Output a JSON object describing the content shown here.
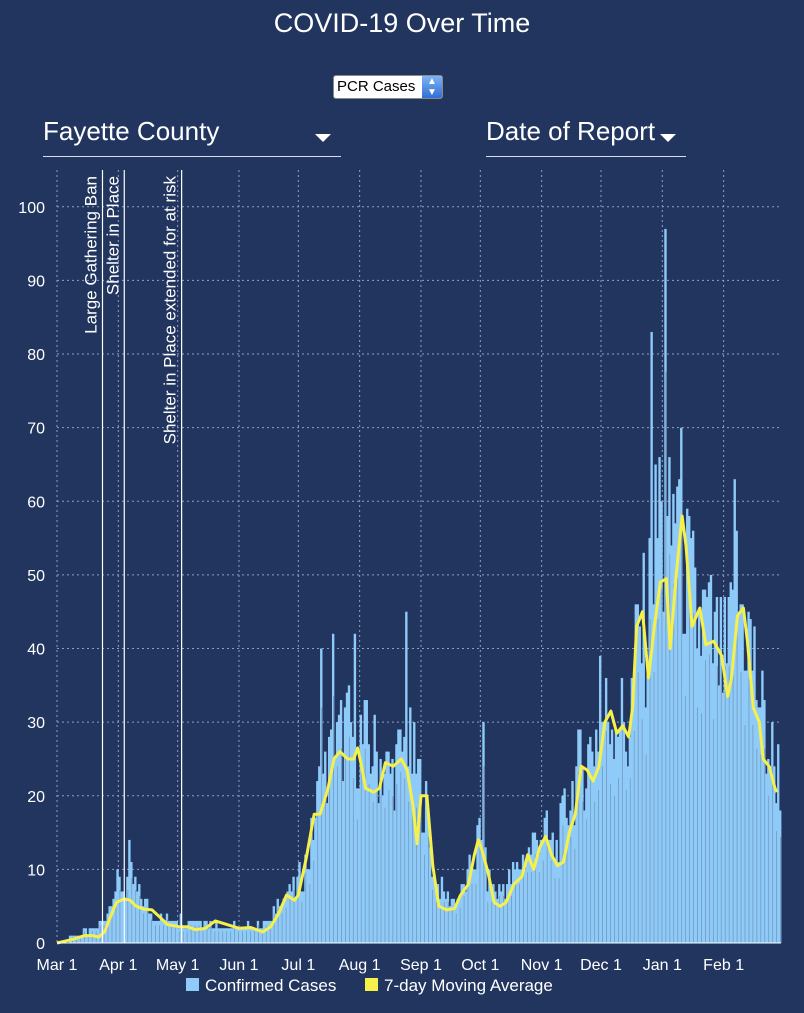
{
  "title": "COVID-19 Over Time",
  "metric_select": {
    "value": "PCR Cases"
  },
  "county_select": {
    "value": "Fayette County"
  },
  "date_select": {
    "value": "Date of Report"
  },
  "colors": {
    "background": "#21355f",
    "bars": "#8fcbf9",
    "avg_line": "#f6f04b",
    "grid": "#8da0c4"
  },
  "chart_data": {
    "type": "bar",
    "overlay": "line",
    "x_start": "Mar 1",
    "x_range_days": [
      0,
      366
    ],
    "ylim": [
      0,
      105
    ],
    "yticks": [
      0,
      10,
      20,
      30,
      40,
      50,
      60,
      70,
      80,
      90,
      100
    ],
    "x_tick_labels": [
      {
        "day": 0,
        "label": "Mar 1"
      },
      {
        "day": 31,
        "label": "Apr 1"
      },
      {
        "day": 61,
        "label": "May 1"
      },
      {
        "day": 92,
        "label": "Jun 1"
      },
      {
        "day": 122,
        "label": "Jul 1"
      },
      {
        "day": 153,
        "label": "Aug 1"
      },
      {
        "day": 184,
        "label": "Sep 1"
      },
      {
        "day": 214,
        "label": "Oct 1"
      },
      {
        "day": 245,
        "label": "Nov 1"
      },
      {
        "day": 275,
        "label": "Dec 1"
      },
      {
        "day": 306,
        "label": "Jan 1"
      },
      {
        "day": 337,
        "label": "Feb 1"
      }
    ],
    "annotations": [
      {
        "day": 23,
        "label": "Large Gathering Ban"
      },
      {
        "day": 34,
        "label": "Shelter in Place"
      },
      {
        "day": 63,
        "label": "Shelter in Place extended for at risk"
      }
    ],
    "legend": [
      "Confirmed Cases",
      "7-day Moving Average"
    ],
    "series": [
      {
        "name": "Confirmed Cases",
        "type": "bar",
        "anchors": [
          [
            0,
            0
          ],
          [
            10,
            1
          ],
          [
            20,
            2
          ],
          [
            24,
            4
          ],
          [
            27,
            6
          ],
          [
            30,
            8
          ],
          [
            33,
            7
          ],
          [
            37,
            9
          ],
          [
            41,
            6
          ],
          [
            48,
            4
          ],
          [
            55,
            3
          ],
          [
            65,
            3
          ],
          [
            75,
            3
          ],
          [
            85,
            2
          ],
          [
            95,
            2
          ],
          [
            108,
            3
          ],
          [
            112,
            6
          ],
          [
            120,
            7
          ],
          [
            127,
            12
          ],
          [
            132,
            20
          ],
          [
            138,
            24
          ],
          [
            145,
            28
          ],
          [
            152,
            27
          ],
          [
            160,
            25
          ],
          [
            168,
            22
          ],
          [
            176,
            26
          ],
          [
            182,
            22
          ],
          [
            186,
            18
          ],
          [
            190,
            8
          ],
          [
            196,
            6
          ],
          [
            203,
            6
          ],
          [
            208,
            9
          ],
          [
            213,
            14
          ],
          [
            218,
            8
          ],
          [
            222,
            7
          ],
          [
            228,
            8
          ],
          [
            235,
            11
          ],
          [
            240,
            13
          ],
          [
            245,
            15
          ],
          [
            251,
            12
          ],
          [
            257,
            18
          ],
          [
            262,
            22
          ],
          [
            267,
            24
          ],
          [
            272,
            28
          ],
          [
            278,
            30
          ],
          [
            283,
            31
          ],
          [
            288,
            27
          ],
          [
            293,
            40
          ],
          [
            298,
            42
          ],
          [
            303,
            55
          ],
          [
            308,
            50
          ],
          [
            313,
            60
          ],
          [
            318,
            48
          ],
          [
            323,
            42
          ],
          [
            328,
            42
          ],
          [
            333,
            38
          ],
          [
            338,
            36
          ],
          [
            343,
            46
          ],
          [
            348,
            42
          ],
          [
            353,
            35
          ],
          [
            358,
            27
          ],
          [
            363,
            23
          ],
          [
            366,
            21
          ]
        ],
        "peaks": [
          [
            36,
            14
          ],
          [
            133,
            40
          ],
          [
            139,
            42
          ],
          [
            150,
            42
          ],
          [
            176,
            45
          ],
          [
            215,
            30
          ],
          [
            274,
            39
          ],
          [
            300,
            83
          ],
          [
            304,
            66
          ],
          [
            307,
            97
          ],
          [
            313,
            62
          ],
          [
            319,
            58
          ],
          [
            342,
            63
          ]
        ]
      },
      {
        "name": "7-day Moving Average",
        "type": "line",
        "points": [
          [
            0,
            0
          ],
          [
            8,
            0.5
          ],
          [
            14,
            1
          ],
          [
            18,
            1
          ],
          [
            21,
            0.8
          ],
          [
            24,
            1.5
          ],
          [
            27,
            3.5
          ],
          [
            30,
            5.5
          ],
          [
            34,
            6
          ],
          [
            37,
            5.8
          ],
          [
            40,
            5
          ],
          [
            44,
            4.6
          ],
          [
            48,
            4.5
          ],
          [
            52,
            3.5
          ],
          [
            56,
            2.5
          ],
          [
            62,
            2.2
          ],
          [
            66,
            2.2
          ],
          [
            70,
            1.8
          ],
          [
            75,
            2
          ],
          [
            80,
            3
          ],
          [
            86,
            2.5
          ],
          [
            92,
            2
          ],
          [
            98,
            2.1
          ],
          [
            104,
            1.5
          ],
          [
            108,
            2.2
          ],
          [
            112,
            4
          ],
          [
            116,
            6.5
          ],
          [
            120,
            5.8
          ],
          [
            122,
            6.5
          ],
          [
            126,
            11.5
          ],
          [
            130,
            17.5
          ],
          [
            133,
            17.5
          ],
          [
            137,
            21
          ],
          [
            140,
            25
          ],
          [
            143,
            26
          ],
          [
            147,
            25
          ],
          [
            150,
            25
          ],
          [
            152,
            26.5
          ],
          [
            154,
            24
          ],
          [
            156,
            21
          ],
          [
            160,
            20.5
          ],
          [
            163,
            21
          ],
          [
            166,
            24.5
          ],
          [
            170,
            24
          ],
          [
            174,
            25
          ],
          [
            177,
            23.5
          ],
          [
            180,
            18.5
          ],
          [
            182,
            13.5
          ],
          [
            184,
            20
          ],
          [
            187,
            20
          ],
          [
            190,
            10.5
          ],
          [
            193,
            5
          ],
          [
            197,
            4.5
          ],
          [
            201,
            4.7
          ],
          [
            204,
            6.5
          ],
          [
            208,
            8
          ],
          [
            211,
            12
          ],
          [
            213,
            14
          ],
          [
            215,
            12.5
          ],
          [
            218,
            9.5
          ],
          [
            221,
            5.5
          ],
          [
            224,
            5
          ],
          [
            227,
            5.5
          ],
          [
            231,
            8
          ],
          [
            235,
            9
          ],
          [
            238,
            12
          ],
          [
            241,
            10
          ],
          [
            244,
            13
          ],
          [
            247,
            14.5
          ],
          [
            250,
            12
          ],
          [
            253,
            10.5
          ],
          [
            256,
            11
          ],
          [
            259,
            15
          ],
          [
            262,
            17.5
          ],
          [
            265,
            24
          ],
          [
            268,
            23.5
          ],
          [
            271,
            22
          ],
          [
            274,
            24
          ],
          [
            277,
            30
          ],
          [
            280,
            31.5
          ],
          [
            283,
            28.5
          ],
          [
            286,
            29.5
          ],
          [
            289,
            28
          ],
          [
            291,
            32
          ],
          [
            293,
            43
          ],
          [
            296,
            45
          ],
          [
            299,
            36
          ],
          [
            302,
            43
          ],
          [
            305,
            49
          ],
          [
            308,
            49.5
          ],
          [
            310,
            40
          ],
          [
            313,
            50
          ],
          [
            316,
            58
          ],
          [
            318,
            54
          ],
          [
            321,
            43
          ],
          [
            325,
            45.5
          ],
          [
            328,
            40.5
          ],
          [
            332,
            41
          ],
          [
            336,
            39
          ],
          [
            339,
            33.5
          ],
          [
            341,
            36
          ],
          [
            344,
            44.5
          ],
          [
            347,
            45.5
          ],
          [
            349,
            41
          ],
          [
            352,
            32
          ],
          [
            355,
            30
          ],
          [
            357,
            25
          ],
          [
            360,
            24
          ],
          [
            363,
            21
          ],
          [
            364,
            20.5
          ]
        ]
      }
    ]
  }
}
